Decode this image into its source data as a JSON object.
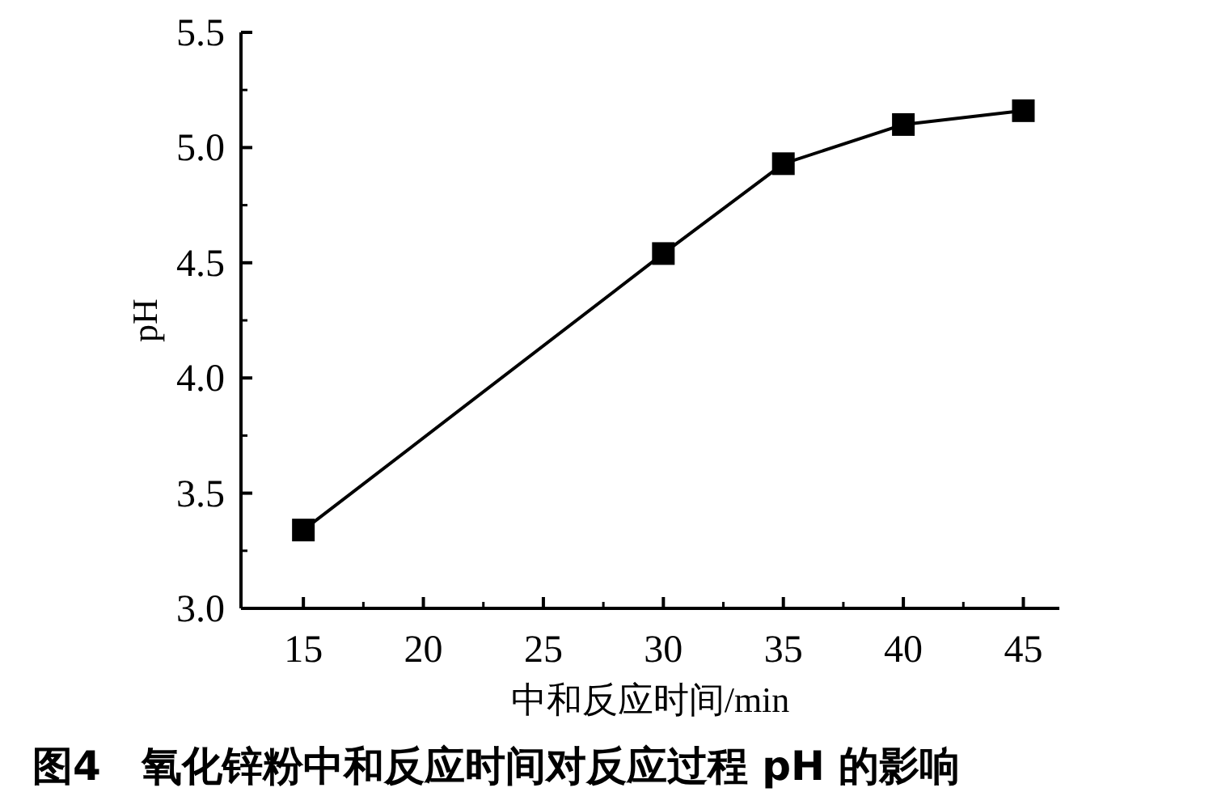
{
  "chart_data": {
    "type": "line",
    "xlabel": "中和反应时间/min",
    "ylabel": "pH",
    "annotations": [
      "图4　氧化锌粉中和反应时间对反应过程 pH 的影响"
    ],
    "x": [
      15,
      30,
      35,
      40,
      45
    ],
    "series": [
      {
        "color": "#000000",
        "values": [
          3.34,
          4.54,
          4.93,
          5.1,
          5.16
        ]
      }
    ],
    "xlim": [
      12.4,
      46.5
    ],
    "xticks": [
      15,
      20,
      25,
      30,
      35,
      40,
      45
    ],
    "ylim": [
      3.0,
      5.5
    ],
    "yticks": [
      {
        "value": 3,
        "label": "3.0"
      },
      {
        "value": 3.5,
        "label": "3.5"
      },
      {
        "value": 4,
        "label": "4.0"
      },
      {
        "value": 4.5,
        "label": "4.5"
      },
      {
        "value": 5,
        "label": "5.0"
      },
      {
        "value": 5.5,
        "label": "5.5"
      }
    ],
    "marker": "square",
    "line_style": "solid"
  }
}
